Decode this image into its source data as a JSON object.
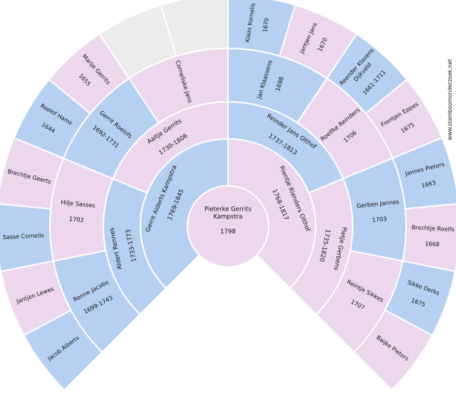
{
  "watermark": "www.stamboomonderzoek.net",
  "colors": {
    "male": "#b6d0f1",
    "female": "#ecd7ec",
    "empty": "#ececec",
    "stroke": "#ffffff"
  },
  "root": {
    "name": "Pieterke Gerrits\nKampstra",
    "date": "1798",
    "sex": "female"
  },
  "rings": [
    [
      {
        "name": "Gerrit Alderts Kampstra",
        "date": "1769-1845",
        "sex": "male"
      },
      {
        "name": "Rientje Rienders Olthof",
        "date": "1768-1817",
        "sex": "female"
      }
    ],
    [
      {
        "name": "Aldert Rennes",
        "date": "1733-1773",
        "sex": "male"
      },
      {
        "name": "Aaltje Gerrits",
        "date": "1730-1806",
        "sex": "female"
      },
      {
        "name": "Reinder Jans Olthof",
        "date": "1737-1813",
        "sex": "male"
      },
      {
        "name": "Pietje Gerbens",
        "date": "1735-1820",
        "sex": "female"
      }
    ],
    [
      {
        "name": "Renne Jacobs",
        "date": "1699-1743",
        "sex": "male"
      },
      {
        "name": "Hilje Sasses",
        "date": "1702",
        "sex": "female"
      },
      {
        "name": "Gerrit Roelofs",
        "date": "1692-1731",
        "sex": "male"
      },
      {
        "name": "Corneliske Jans",
        "date": "",
        "sex": "female"
      },
      {
        "name": "Jan Klaassens",
        "date": "1698",
        "sex": "male"
      },
      {
        "name": "Roelfke Reinders",
        "date": "1706",
        "sex": "female"
      },
      {
        "name": "Gerben Jannes",
        "date": "1703",
        "sex": "male"
      },
      {
        "name": "Reintje Sikkes",
        "date": "1707",
        "sex": "female"
      }
    ],
    [
      {
        "name": "Jacob Alberts",
        "date": "",
        "sex": "male"
      },
      {
        "name": "Jantjen Lewes",
        "date": "",
        "sex": "female"
      },
      {
        "name": "Sasse Cornelis",
        "date": "",
        "sex": "male"
      },
      {
        "name": "Brechtje Geerts",
        "date": "",
        "sex": "female"
      },
      {
        "name": "Roelof Hams",
        "date": "1644",
        "sex": "male"
      },
      {
        "name": "Marije Gerrits",
        "date": "1655",
        "sex": "female"
      },
      {
        "name": "",
        "date": "",
        "sex": "empty"
      },
      {
        "name": "",
        "date": "",
        "sex": "empty"
      },
      {
        "name": "Klaas Kornelis",
        "date": "1670",
        "sex": "male"
      },
      {
        "name": "Jantjen Jans",
        "date": "1670",
        "sex": "female"
      },
      {
        "name": "Reender Klasens\nDijkveld",
        "date": "1661-1711",
        "sex": "male"
      },
      {
        "name": "Frentjen Eppes",
        "date": "1675",
        "sex": "female"
      },
      {
        "name": "Jannes Pieters",
        "date": "1663",
        "sex": "male"
      },
      {
        "name": "Brechtje Roelfs",
        "date": "1668",
        "sex": "female"
      },
      {
        "name": "Sikke Derks",
        "date": "1675",
        "sex": "male"
      },
      {
        "name": "Baijke Pieters",
        "date": "",
        "sex": "female"
      }
    ]
  ]
}
